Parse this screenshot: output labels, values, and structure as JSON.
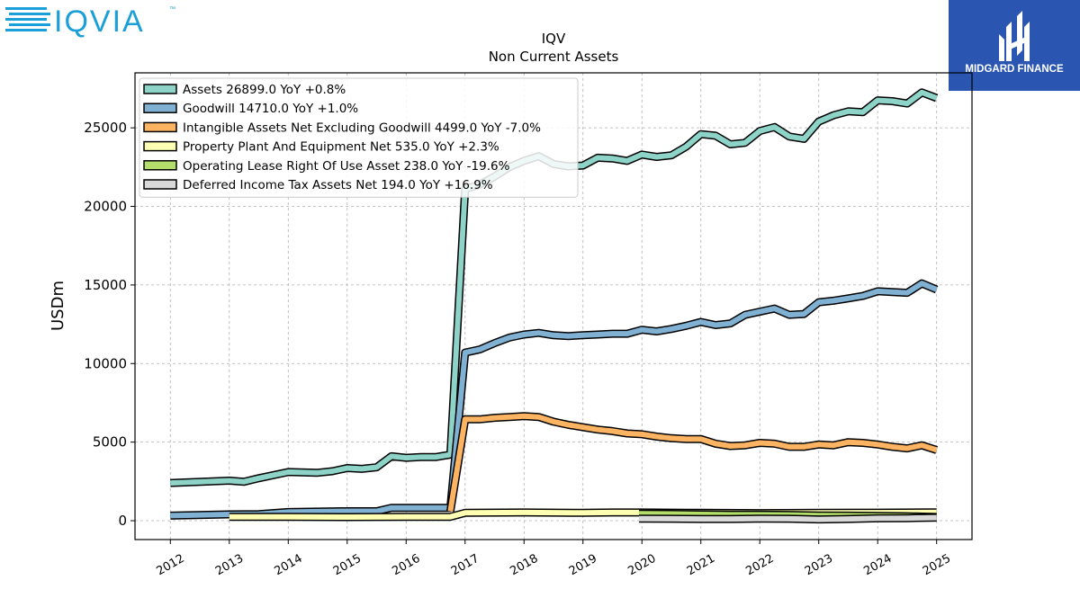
{
  "branding": {
    "left_logo_text": "IQVIA",
    "left_logo_tm": "™",
    "right_logo_text": "MIDGARD FINANCE"
  },
  "colors": {
    "assets": "#8dd3c7",
    "goodwill": "#80b1d3",
    "intangible": "#fdb462",
    "ppe": "#ffffb3",
    "lease": "#b3de69",
    "deferred_tax": "#d9d9d9",
    "brand_left": "#1a9fd8",
    "brand_right": "#2a55b0"
  },
  "chart_data": {
    "type": "line",
    "title": "IQV",
    "subtitle": "Non Current  Assets",
    "ylabel": "USDm",
    "xlabel": "",
    "ylim": [
      -1200,
      28500
    ],
    "xlim": [
      2011.4,
      2025.6
    ],
    "yticks": [
      0,
      5000,
      10000,
      15000,
      20000,
      25000
    ],
    "ytick_labels": [
      "0",
      "5000",
      "10000",
      "15000",
      "20000",
      "25000"
    ],
    "xticks": [
      2012,
      2013,
      2014,
      2015,
      2016,
      2017,
      2018,
      2019,
      2020,
      2021,
      2022,
      2023,
      2024,
      2025
    ],
    "xtick_labels": [
      "2012",
      "2013",
      "2014",
      "2015",
      "2016",
      "2017",
      "2018",
      "2019",
      "2020",
      "2021",
      "2022",
      "2023",
      "2024",
      "2025"
    ],
    "grid": true,
    "legend_position": "top-left",
    "series": [
      {
        "name": "Assets",
        "legend": "Assets  26899.0 YoY +0.8%",
        "color_key": "assets",
        "points": [
          [
            2012.0,
            2400
          ],
          [
            2013.0,
            2550
          ],
          [
            2013.25,
            2480
          ],
          [
            2013.5,
            2700
          ],
          [
            2014.0,
            3100
          ],
          [
            2014.5,
            3050
          ],
          [
            2014.75,
            3150
          ],
          [
            2015.0,
            3350
          ],
          [
            2015.25,
            3300
          ],
          [
            2015.5,
            3400
          ],
          [
            2015.75,
            4100
          ],
          [
            2016.0,
            4000
          ],
          [
            2016.25,
            4050
          ],
          [
            2016.5,
            4050
          ],
          [
            2016.75,
            4200
          ],
          [
            2017.0,
            21100
          ],
          [
            2017.25,
            21400
          ],
          [
            2017.5,
            21900
          ],
          [
            2017.75,
            22500
          ],
          [
            2018.0,
            22900
          ],
          [
            2018.25,
            23200
          ],
          [
            2018.5,
            22700
          ],
          [
            2018.75,
            22550
          ],
          [
            2019.0,
            22600
          ],
          [
            2019.25,
            23100
          ],
          [
            2019.5,
            23050
          ],
          [
            2019.75,
            22900
          ],
          [
            2020.0,
            23300
          ],
          [
            2020.25,
            23150
          ],
          [
            2020.5,
            23250
          ],
          [
            2020.75,
            23800
          ],
          [
            2021.0,
            24600
          ],
          [
            2021.25,
            24500
          ],
          [
            2021.5,
            23950
          ],
          [
            2021.75,
            24050
          ],
          [
            2022.0,
            24800
          ],
          [
            2022.25,
            25050
          ],
          [
            2022.5,
            24450
          ],
          [
            2022.75,
            24300
          ],
          [
            2023.0,
            25400
          ],
          [
            2023.25,
            25800
          ],
          [
            2023.5,
            26050
          ],
          [
            2023.75,
            26000
          ],
          [
            2024.0,
            26750
          ],
          [
            2024.25,
            26700
          ],
          [
            2024.5,
            26550
          ],
          [
            2024.75,
            27250
          ],
          [
            2025.0,
            26899
          ]
        ]
      },
      {
        "name": "Goodwill",
        "legend": "Goodwill  14710.0 YoY +1.0%",
        "color_key": "goodwill",
        "points": [
          [
            2012.0,
            320
          ],
          [
            2013.0,
            400
          ],
          [
            2013.5,
            420
          ],
          [
            2014.0,
            550
          ],
          [
            2015.0,
            600
          ],
          [
            2015.5,
            600
          ],
          [
            2015.75,
            820
          ],
          [
            2016.0,
            820
          ],
          [
            2016.5,
            820
          ],
          [
            2016.75,
            820
          ],
          [
            2017.0,
            10700
          ],
          [
            2017.25,
            10900
          ],
          [
            2017.5,
            11300
          ],
          [
            2017.75,
            11650
          ],
          [
            2018.0,
            11850
          ],
          [
            2018.25,
            11950
          ],
          [
            2018.5,
            11800
          ],
          [
            2018.75,
            11750
          ],
          [
            2019.0,
            11800
          ],
          [
            2019.25,
            11850
          ],
          [
            2019.5,
            11900
          ],
          [
            2019.75,
            11900
          ],
          [
            2020.0,
            12150
          ],
          [
            2020.25,
            12050
          ],
          [
            2020.5,
            12200
          ],
          [
            2020.75,
            12400
          ],
          [
            2021.0,
            12650
          ],
          [
            2021.25,
            12450
          ],
          [
            2021.5,
            12550
          ],
          [
            2021.75,
            13100
          ],
          [
            2022.0,
            13300
          ],
          [
            2022.25,
            13500
          ],
          [
            2022.5,
            13100
          ],
          [
            2022.75,
            13150
          ],
          [
            2023.0,
            13900
          ],
          [
            2023.25,
            14000
          ],
          [
            2023.5,
            14150
          ],
          [
            2023.75,
            14300
          ],
          [
            2024.0,
            14600
          ],
          [
            2024.25,
            14550
          ],
          [
            2024.5,
            14500
          ],
          [
            2024.75,
            15100
          ],
          [
            2025.0,
            14710
          ]
        ]
      },
      {
        "name": "Intangible Assets Net Excluding Goodwill",
        "legend": "Intangible Assets Net Excluding Goodwill  4499.0 YoY -7.0%",
        "color_key": "intangible",
        "points": [
          [
            2016.75,
            600
          ],
          [
            2017.0,
            6450
          ],
          [
            2017.25,
            6450
          ],
          [
            2017.5,
            6550
          ],
          [
            2017.75,
            6600
          ],
          [
            2018.0,
            6650
          ],
          [
            2018.25,
            6600
          ],
          [
            2018.5,
            6300
          ],
          [
            2018.75,
            6100
          ],
          [
            2019.0,
            5950
          ],
          [
            2019.25,
            5800
          ],
          [
            2019.5,
            5700
          ],
          [
            2019.75,
            5550
          ],
          [
            2020.0,
            5500
          ],
          [
            2020.25,
            5350
          ],
          [
            2020.5,
            5250
          ],
          [
            2020.75,
            5200
          ],
          [
            2021.0,
            5200
          ],
          [
            2021.25,
            4900
          ],
          [
            2021.5,
            4750
          ],
          [
            2021.75,
            4800
          ],
          [
            2022.0,
            4950
          ],
          [
            2022.25,
            4900
          ],
          [
            2022.5,
            4700
          ],
          [
            2022.75,
            4700
          ],
          [
            2023.0,
            4850
          ],
          [
            2023.25,
            4800
          ],
          [
            2023.5,
            5000
          ],
          [
            2023.75,
            4950
          ],
          [
            2024.0,
            4850
          ],
          [
            2024.25,
            4700
          ],
          [
            2024.5,
            4600
          ],
          [
            2024.75,
            4800
          ],
          [
            2025.0,
            4499
          ]
        ]
      },
      {
        "name": "Property Plant And Equipment Net",
        "legend": "Property Plant And Equipment Net  535.0 YoY +2.3%",
        "color_key": "ppe",
        "points": [
          [
            2013.0,
            250
          ],
          [
            2014.0,
            250
          ],
          [
            2015.0,
            230
          ],
          [
            2016.0,
            250
          ],
          [
            2016.75,
            250
          ],
          [
            2017.0,
            500
          ],
          [
            2018.0,
            520
          ],
          [
            2019.0,
            500
          ],
          [
            2019.5,
            520
          ],
          [
            2020.0,
            520
          ],
          [
            2021.0,
            500
          ],
          [
            2022.0,
            480
          ],
          [
            2023.0,
            500
          ],
          [
            2024.0,
            510
          ],
          [
            2025.0,
            535
          ]
        ]
      },
      {
        "name": "Operating Lease Right Of Use Asset",
        "legend": "Operating Lease Right Of Use Asset  238.0 YoY -19.6%",
        "color_key": "lease",
        "points": [
          [
            2019.95,
            450
          ],
          [
            2020.5,
            430
          ],
          [
            2021.0,
            400
          ],
          [
            2021.5,
            380
          ],
          [
            2022.0,
            380
          ],
          [
            2022.5,
            370
          ],
          [
            2023.0,
            330
          ],
          [
            2023.5,
            320
          ],
          [
            2024.0,
            300
          ],
          [
            2024.5,
            280
          ],
          [
            2025.0,
            238
          ]
        ]
      },
      {
        "name": "Deferred Income Tax Assets Net",
        "legend": "Deferred Income Tax Assets Net  194.0 YoY +16.9%",
        "color_key": "deferred_tax",
        "points": [
          [
            2019.95,
            130
          ],
          [
            2020.5,
            120
          ],
          [
            2021.0,
            110
          ],
          [
            2021.5,
            110
          ],
          [
            2022.0,
            130
          ],
          [
            2022.5,
            120
          ],
          [
            2023.0,
            80
          ],
          [
            2023.5,
            110
          ],
          [
            2024.0,
            150
          ],
          [
            2024.5,
            160
          ],
          [
            2025.0,
            194
          ]
        ]
      }
    ]
  }
}
